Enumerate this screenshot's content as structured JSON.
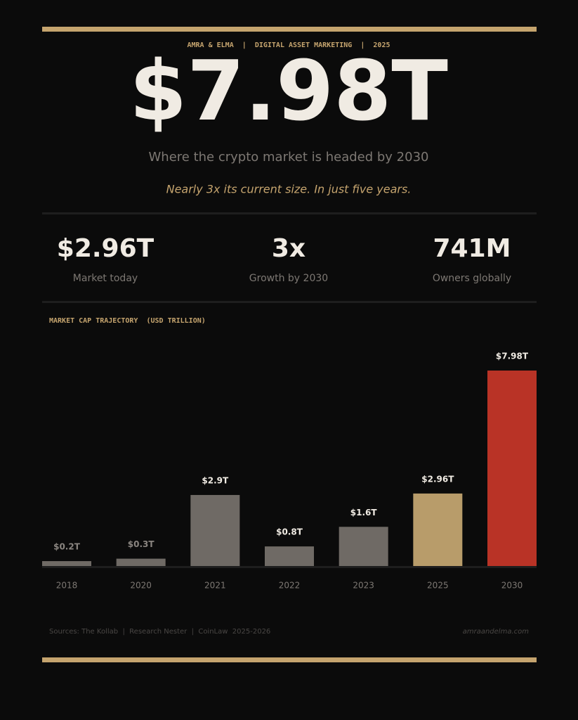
{
  "header": {
    "kicker": "AMRA & ELMA  |  DIGITAL ASSET MARKETING  |  2025",
    "headline": "$7.98T",
    "subtitle": "Where the crypto market is headed by 2030",
    "tagline": "Nearly 3x its current size. In just five years."
  },
  "stats": [
    {
      "value": "$2.96T",
      "label": "Market today"
    },
    {
      "value": "3x",
      "label": "Growth by 2030"
    },
    {
      "value": "741M",
      "label": "Owners globally"
    }
  ],
  "chart_data": {
    "type": "bar",
    "title": "MARKET CAP TRAJECTORY  (USD TRILLION)",
    "categories": [
      "2018",
      "2020",
      "2021",
      "2022",
      "2023",
      "2025",
      "2030"
    ],
    "values": [
      0.2,
      0.3,
      2.9,
      0.8,
      1.6,
      2.96,
      7.98
    ],
    "value_labels": [
      "$0.2T",
      "$0.3T",
      "$2.9T",
      "$0.8T",
      "$1.6T",
      "$2.96T",
      "$7.98T"
    ],
    "colors": [
      "#6f6a65",
      "#6f6a65",
      "#6f6a65",
      "#6f6a65",
      "#6f6a65",
      "#b89c6a",
      "#b93326"
    ]
  },
  "footer": {
    "sources": "Sources: The Kollab  |  Research Nester  |  CoinLaw  2025-2026",
    "site": "amraandelma.com"
  }
}
